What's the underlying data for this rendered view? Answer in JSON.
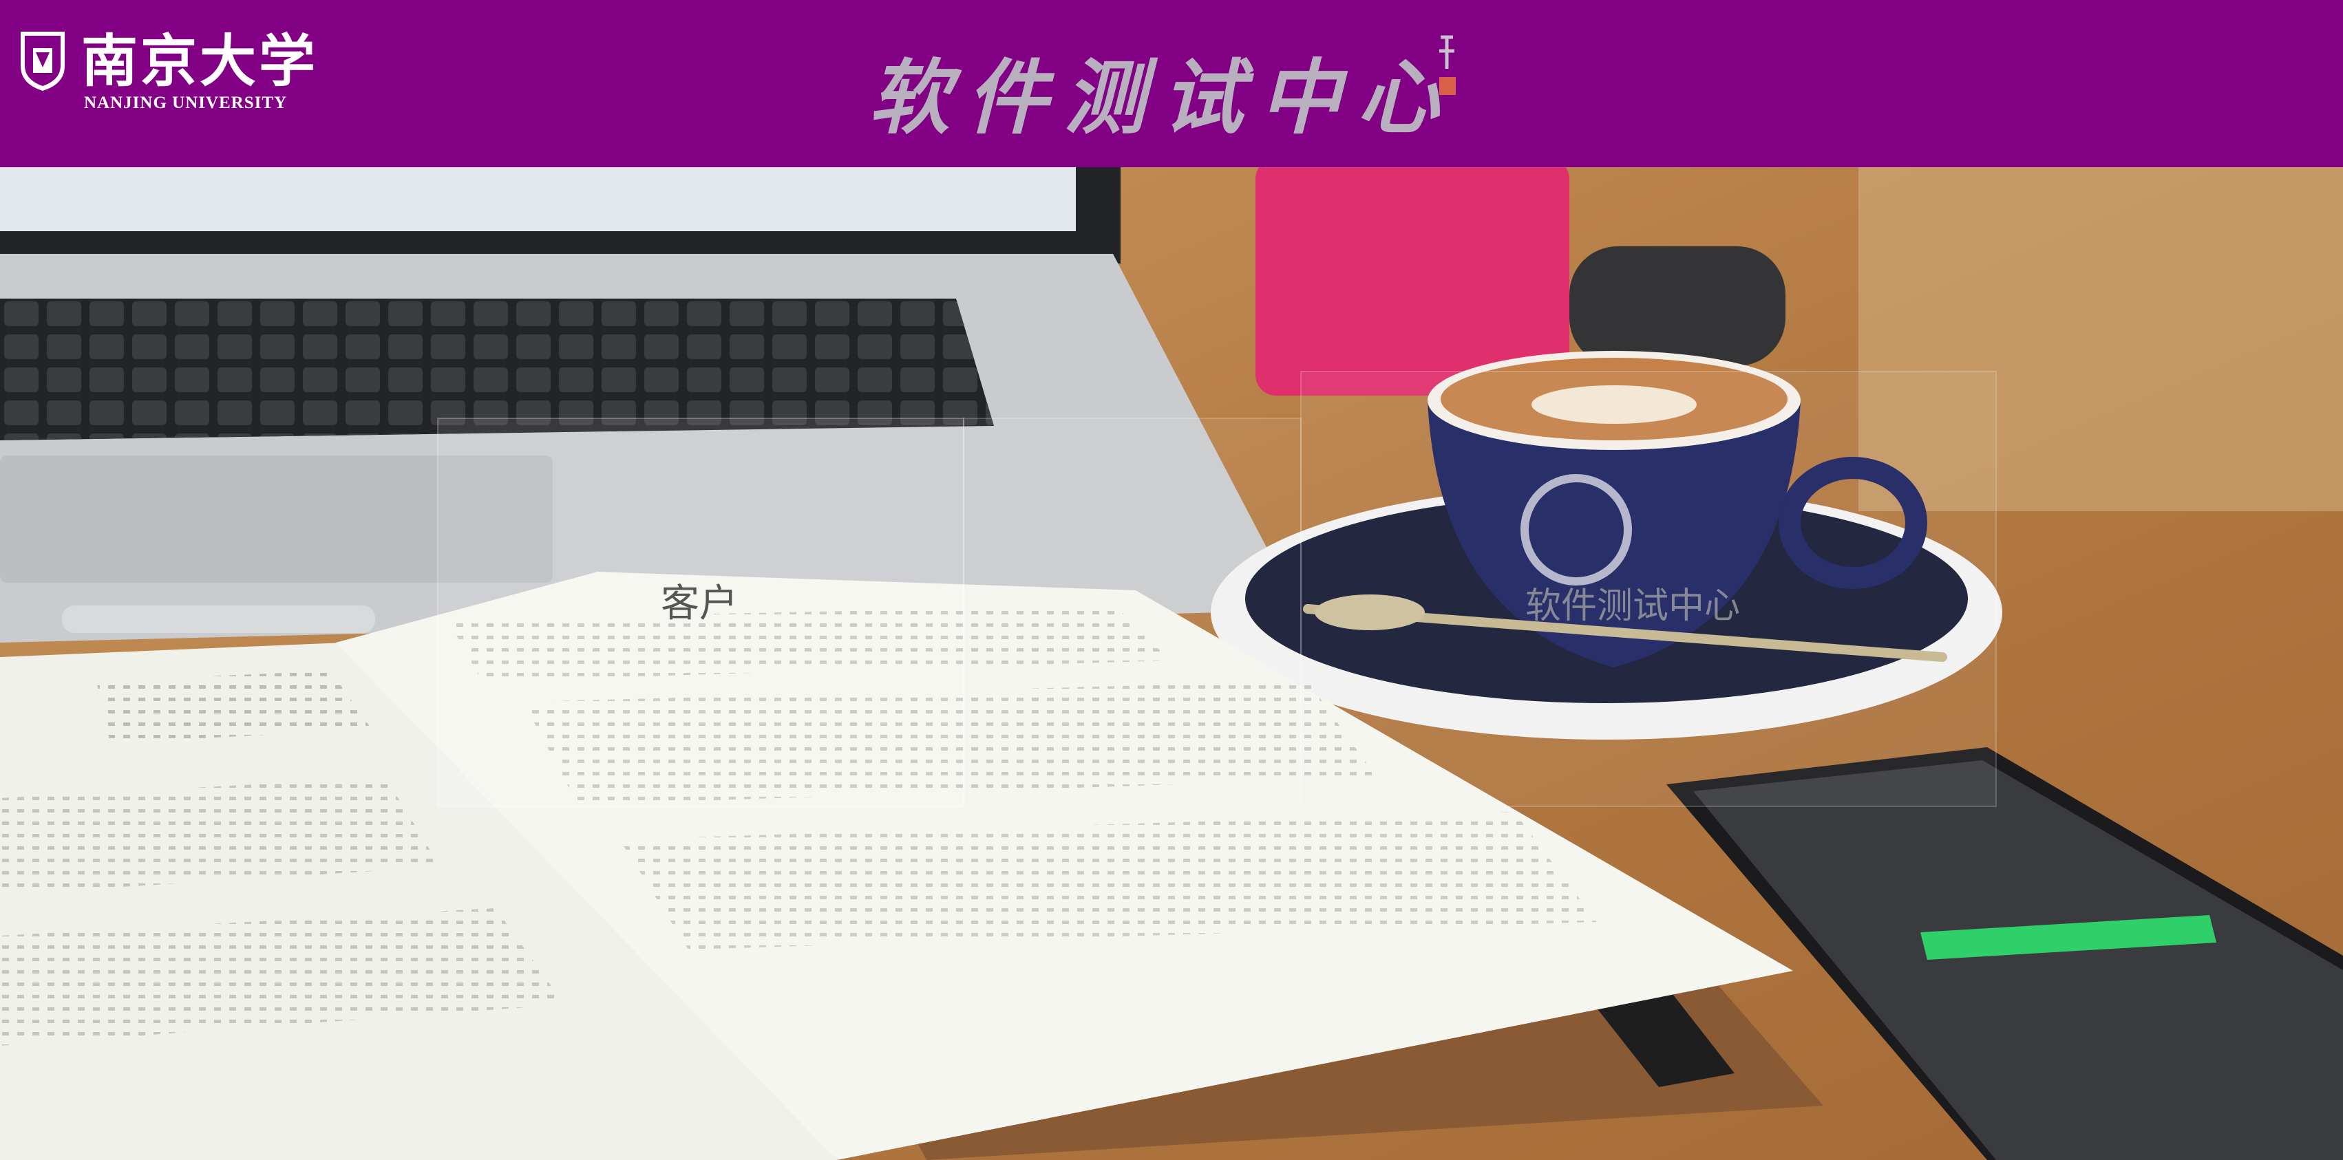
{
  "header": {
    "university_name": "南京大学",
    "university_name_en": "NANJING UNIVERSITY",
    "title": "软件测试中心"
  },
  "content": {
    "label": "客户",
    "watermark": "软件测试中心"
  }
}
